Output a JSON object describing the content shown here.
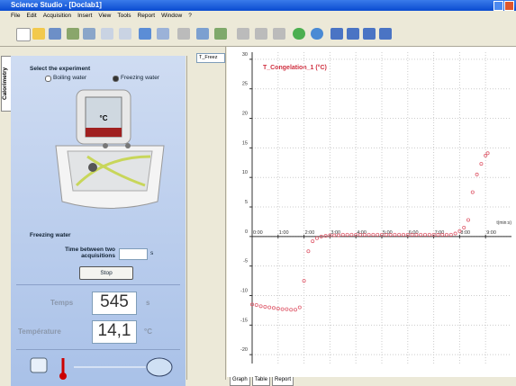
{
  "window": {
    "title": "Science Studio - [Doclab1]"
  },
  "menu": [
    "File",
    "Edit",
    "Acquisition",
    "Insert",
    "View",
    "Tools",
    "Report",
    "Window",
    "?"
  ],
  "sidebar": {
    "tab": "Calorimetry",
    "select_label": "Select the experiment",
    "options": [
      "Boiling water",
      "Freezing water"
    ],
    "device_unit": "°C",
    "experiment": "Freezing water",
    "interval_label": "Time between two acquisitions",
    "interval_unit": "s",
    "button": "Stop",
    "readouts": [
      {
        "label": "Temps",
        "value": "545",
        "unit": "s"
      },
      {
        "label": "Température",
        "value": "14,1",
        "unit": "°C"
      }
    ]
  },
  "graph_selector": "T_Freez",
  "chart_data": {
    "type": "scatter",
    "title": "T_Congelation_1 (°C)",
    "x_label": "t(min:s)",
    "color": "#e06070",
    "grid": true,
    "x": [
      0,
      10,
      20,
      30,
      40,
      50,
      60,
      70,
      80,
      90,
      100,
      110,
      120,
      130,
      140,
      150,
      160,
      170,
      180,
      190,
      200,
      210,
      220,
      230,
      240,
      250,
      260,
      270,
      280,
      290,
      300,
      310,
      320,
      330,
      340,
      350,
      360,
      370,
      380,
      390,
      400,
      410,
      420,
      430,
      440,
      450,
      460,
      470,
      480,
      490,
      500,
      510,
      520,
      530,
      540,
      545
    ],
    "values": [
      -11.5,
      -11.6,
      -11.8,
      -11.9,
      -12.0,
      -12.1,
      -12.2,
      -12.3,
      -12.3,
      -12.4,
      -12.4,
      -12.0,
      -7.5,
      -2.5,
      -0.8,
      -0.3,
      0,
      0.1,
      0.2,
      0.2,
      0.2,
      0.3,
      0.3,
      0.3,
      0.3,
      0.3,
      0.3,
      0.3,
      0.3,
      0.3,
      0.3,
      0.3,
      0.3,
      0.3,
      0.3,
      0.3,
      0.3,
      0.3,
      0.3,
      0.3,
      0.3,
      0.3,
      0.3,
      0.3,
      0.3,
      0.3,
      0.3,
      0.5,
      0.9,
      1.5,
      2.8,
      7.5,
      10.5,
      12.3,
      13.7,
      14.1
    ],
    "xlim": [
      0,
      600
    ],
    "ylim": [
      -21.5,
      31.2
    ],
    "xticks": [
      {
        "value": 0,
        "label": "0:00"
      },
      {
        "value": 60,
        "label": "1:00"
      },
      {
        "value": 120,
        "label": "2:00"
      },
      {
        "value": 180,
        "label": "3:00"
      },
      {
        "value": 240,
        "label": "4:00"
      },
      {
        "value": 300,
        "label": "5:00"
      },
      {
        "value": 360,
        "label": "6:00"
      },
      {
        "value": 420,
        "label": "7:00"
      },
      {
        "value": 480,
        "label": "8:00"
      },
      {
        "value": 540,
        "label": "9:00"
      }
    ],
    "yticks": [
      30,
      25,
      20,
      15,
      10,
      5,
      0,
      -5,
      -10,
      -15,
      -20
    ]
  },
  "tabs": [
    "Graph",
    "Table",
    "Report"
  ]
}
